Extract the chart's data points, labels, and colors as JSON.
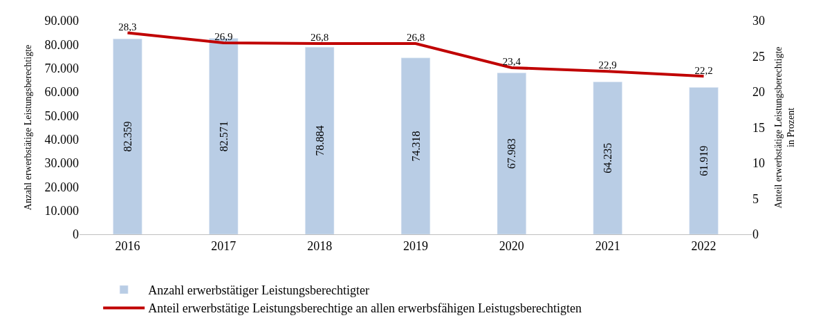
{
  "chart_data": {
    "type": "bar",
    "categories": [
      "2016",
      "2017",
      "2018",
      "2019",
      "2020",
      "2021",
      "2022"
    ],
    "ylabel": "Anzahl erwerbstätige Leistungsberechtigte",
    "y2label": "Anteil erwerbstätige Leistungsberechtigte\nin Prozent",
    "series": [
      {
        "name": "Anzahl erwerbstätiger Leistungsberechtigter",
        "color": "#b9cde5",
        "values": [
          82359,
          82571,
          78884,
          74318,
          67983,
          64235,
          61919
        ],
        "value_labels": [
          "82.359",
          "82.571",
          "78.884",
          "74.318",
          "67.983",
          "64.235",
          "61.919"
        ]
      },
      {
        "name": "Anteil erwerbstätige Leistungsberechtige an allen erwerbsfähigen Leistugsberechtigten",
        "type": "line",
        "axis": "y2",
        "color": "#c00000",
        "values": [
          28.3,
          26.9,
          26.8,
          26.8,
          23.4,
          22.9,
          22.2
        ],
        "value_labels": [
          "28,3",
          "26,9",
          "26,8",
          "26,8",
          "23,4",
          "22,9",
          "22,2"
        ]
      }
    ],
    "ylim": [
      0,
      90000
    ],
    "yticks": [
      {
        "value": 0,
        "label": "0"
      },
      {
        "value": 10000,
        "label": "10.000"
      },
      {
        "value": 20000,
        "label": "20.000"
      },
      {
        "value": 30000,
        "label": "30.000"
      },
      {
        "value": 40000,
        "label": "40.000"
      },
      {
        "value": 50000,
        "label": "50.000"
      },
      {
        "value": 60000,
        "label": "60.000"
      },
      {
        "value": 70000,
        "label": "70.000"
      },
      {
        "value": 80000,
        "label": "80.000"
      },
      {
        "value": 90000,
        "label": "90.000"
      }
    ],
    "y2lim": [
      0,
      30
    ],
    "y2ticks": [
      0,
      5,
      10,
      15,
      20,
      25,
      30
    ],
    "legend": "bottom",
    "marker": "none",
    "line_style": "solid"
  }
}
